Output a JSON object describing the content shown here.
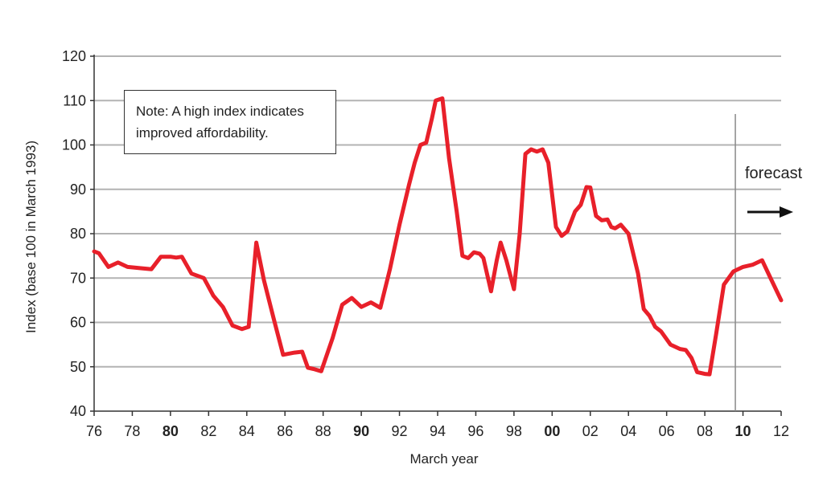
{
  "chart_data": {
    "type": "line",
    "xlabel": "March year",
    "ylabel": "Index (base 100 in March 1993)",
    "ylim": [
      40,
      120
    ],
    "xlim": [
      1976,
      2012
    ],
    "yticks": [
      40,
      50,
      60,
      70,
      80,
      90,
      100,
      110,
      120
    ],
    "xticks": [
      {
        "value": 1976,
        "label": "76",
        "bold": false
      },
      {
        "value": 1978,
        "label": "78",
        "bold": false
      },
      {
        "value": 1980,
        "label": "80",
        "bold": true
      },
      {
        "value": 1982,
        "label": "82",
        "bold": false
      },
      {
        "value": 1984,
        "label": "84",
        "bold": false
      },
      {
        "value": 1986,
        "label": "86",
        "bold": false
      },
      {
        "value": 1988,
        "label": "88",
        "bold": false
      },
      {
        "value": 1990,
        "label": "90",
        "bold": true
      },
      {
        "value": 1992,
        "label": "92",
        "bold": false
      },
      {
        "value": 1994,
        "label": "94",
        "bold": false
      },
      {
        "value": 1996,
        "label": "96",
        "bold": false
      },
      {
        "value": 1998,
        "label": "98",
        "bold": false
      },
      {
        "value": 2000,
        "label": "00",
        "bold": true
      },
      {
        "value": 2002,
        "label": "02",
        "bold": false
      },
      {
        "value": 2004,
        "label": "04",
        "bold": false
      },
      {
        "value": 2006,
        "label": "06",
        "bold": false
      },
      {
        "value": 2008,
        "label": "08",
        "bold": false
      },
      {
        "value": 2010,
        "label": "10",
        "bold": true
      },
      {
        "value": 2012,
        "label": "12",
        "bold": false
      }
    ],
    "grid": true,
    "line_color": "#e8202a",
    "grid_color": "#b3b3b3",
    "annotation_note": "Note: A high index indicates improved affordability.",
    "forecast_label": "forecast",
    "forecast_start": 2009.6,
    "series": [
      {
        "x": [
          1976.0,
          1976.25,
          1976.75,
          1977.25,
          1977.75,
          1978.5,
          1979.0,
          1979.5,
          1980.0,
          1980.3,
          1980.6,
          1981.1,
          1981.75,
          1982.25,
          1982.75,
          1983.25,
          1983.75,
          1984.1,
          1984.5,
          1984.9,
          1985.4,
          1985.9,
          1986.5,
          1986.9,
          1987.2,
          1987.5,
          1987.9,
          1988.5,
          1989.0,
          1989.5,
          1990.0,
          1990.5,
          1991.0,
          1991.5,
          1992.0,
          1992.5,
          1992.8,
          1993.1,
          1993.4,
          1993.7,
          1993.9,
          1994.25,
          1994.6,
          1995.0,
          1995.3,
          1995.6,
          1995.9,
          1996.2,
          1996.4,
          1996.8,
          1997.1,
          1997.3,
          1997.6,
          1998.0,
          1998.3,
          1998.6,
          1998.9,
          1999.2,
          1999.5,
          1999.8,
          2000.2,
          2000.5,
          2000.8,
          2001.2,
          2001.5,
          2001.8,
          2002.0,
          2002.3,
          2002.6,
          2002.9,
          2003.1,
          2003.3,
          2003.6,
          2004.0,
          2004.5,
          2004.8,
          2005.1,
          2005.4,
          2005.7,
          2006.2,
          2006.7,
          2007.0,
          2007.3,
          2007.6,
          2008.0,
          2008.25,
          2008.6,
          2009.0,
          2009.5,
          2010.0,
          2010.5,
          2011.0,
          2011.5,
          2012.0
        ],
        "y": [
          76,
          75.6,
          72.5,
          73.5,
          72.5,
          72.2,
          72.0,
          74.8,
          74.8,
          74.6,
          74.8,
          71.0,
          70.0,
          66.0,
          63.5,
          59.3,
          58.5,
          59.0,
          78.0,
          69.5,
          61.0,
          52.7,
          53.2,
          53.4,
          49.8,
          49.5,
          49.0,
          56.5,
          64.0,
          65.5,
          63.5,
          64.5,
          63.3,
          72.0,
          82.0,
          91.0,
          96.0,
          100.0,
          100.5,
          106.0,
          110.0,
          110.5,
          97.0,
          85.0,
          75.0,
          74.5,
          75.8,
          75.5,
          74.5,
          67.0,
          74.0,
          78.0,
          74.0,
          67.5,
          80.0,
          98.0,
          99.0,
          98.5,
          99.0,
          96.0,
          81.5,
          79.5,
          80.5,
          85.0,
          86.5,
          90.5,
          90.4,
          84.0,
          83.0,
          83.2,
          81.5,
          81.2,
          82.0,
          80.0,
          71.0,
          63.0,
          61.5,
          59.0,
          58.0,
          55.0,
          54.0,
          53.8,
          52.0,
          48.8,
          48.4,
          48.3,
          57.5,
          68.5,
          71.5,
          72.5,
          73.0,
          74.0,
          69.5,
          65.0
        ]
      }
    ]
  }
}
